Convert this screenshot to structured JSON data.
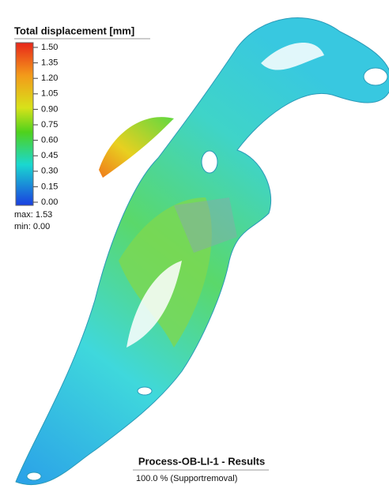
{
  "legend": {
    "title": "Total displacement [mm]",
    "ticks": [
      "1.50",
      "1.35",
      "1.20",
      "1.05",
      "0.90",
      "0.75",
      "0.60",
      "0.45",
      "0.30",
      "0.15",
      "0.00"
    ],
    "max": "max: 1.53",
    "min": "min:  0.00"
  },
  "footer": {
    "title": "Process-OB-LI-1 - Results",
    "subtitle": "100.0 % (Supportremoval)"
  }
}
